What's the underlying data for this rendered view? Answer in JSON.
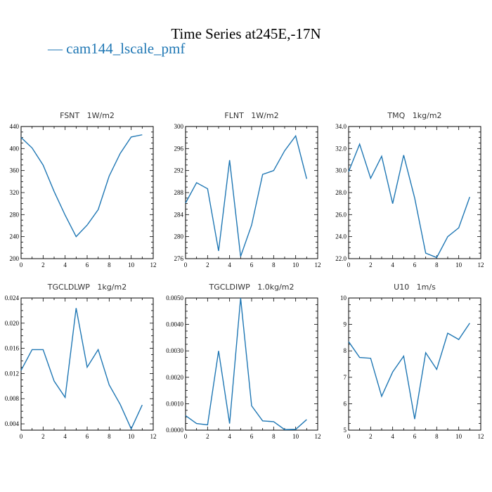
{
  "figure": {
    "title": "Time Series at245E,-17N",
    "legend_label": "cam144_lscale_pmf",
    "line_color": "#1f77b4"
  },
  "chart_data": [
    {
      "type": "line",
      "title": "FSNT   1W/m2",
      "x": [
        0,
        1,
        2,
        3,
        4,
        5,
        6,
        7,
        8,
        9,
        10,
        11
      ],
      "xlim": [
        0,
        12
      ],
      "xticks": [
        "0",
        "2",
        "4",
        "6",
        "8",
        "10",
        "12"
      ],
      "ylim": [
        200,
        440
      ],
      "yticks": [
        "200",
        "240",
        "280",
        "320",
        "360",
        "400",
        "440"
      ],
      "series": [
        {
          "values": [
            420,
            401,
            370,
            322,
            279,
            240,
            261,
            289,
            350,
            391,
            421,
            425
          ]
        }
      ]
    },
    {
      "type": "line",
      "title": "FLNT   1W/m2",
      "x": [
        0,
        1,
        2,
        3,
        4,
        5,
        6,
        7,
        8,
        9,
        10,
        11
      ],
      "xlim": [
        0,
        12
      ],
      "xticks": [
        "0",
        "2",
        "4",
        "6",
        "8",
        "10",
        "12"
      ],
      "ylim": [
        276,
        300
      ],
      "yticks": [
        "276",
        "280",
        "284",
        "288",
        "292",
        "296",
        "300"
      ],
      "series": [
        {
          "values": [
            286.1,
            289.8,
            288.7,
            277.4,
            293.9,
            276.4,
            282.1,
            291.3,
            292.0,
            295.6,
            298.3,
            290.5
          ]
        }
      ]
    },
    {
      "type": "line",
      "title": "TMQ   1kg/m2",
      "x": [
        0,
        1,
        2,
        3,
        4,
        5,
        6,
        7,
        8,
        9,
        10,
        11
      ],
      "xlim": [
        0,
        12
      ],
      "xticks": [
        "0",
        "2",
        "4",
        "6",
        "8",
        "10",
        "12"
      ],
      "ylim": [
        22,
        34
      ],
      "yticks": [
        "22.0",
        "24.0",
        "26.0",
        "28.0",
        "30.0",
        "32.0",
        "34.0"
      ],
      "series": [
        {
          "values": [
            29.9,
            32.4,
            29.3,
            31.3,
            27.0,
            31.4,
            27.5,
            22.5,
            22.1,
            24.0,
            24.8,
            27.6
          ]
        }
      ]
    },
    {
      "type": "line",
      "title": "TGCLDLWP   1kg/m2",
      "x": [
        0,
        1,
        2,
        3,
        4,
        5,
        6,
        7,
        8,
        9,
        10,
        11
      ],
      "xlim": [
        0,
        12
      ],
      "xticks": [
        "0",
        "2",
        "4",
        "6",
        "8",
        "10",
        "12"
      ],
      "ylim": [
        0.003,
        0.024
      ],
      "yticks": [
        "0.004",
        "0.008",
        "0.012",
        "0.016",
        "0.020",
        "0.024"
      ],
      "series": [
        {
          "values": [
            0.0125,
            0.0158,
            0.0158,
            0.0108,
            0.0082,
            0.0224,
            0.013,
            0.0158,
            0.0102,
            0.0071,
            0.0032,
            0.007
          ]
        }
      ]
    },
    {
      "type": "line",
      "title": "TGCLDIWP   1.0kg/m2",
      "x": [
        0,
        1,
        2,
        3,
        4,
        5,
        6,
        7,
        8,
        9,
        10,
        11
      ],
      "xlim": [
        0,
        12
      ],
      "xticks": [
        "0",
        "2",
        "4",
        "6",
        "8",
        "10",
        "12"
      ],
      "ylim": [
        0,
        0.005
      ],
      "yticks": [
        "0.0000",
        "0.0010",
        "0.0020",
        "0.0030",
        "0.0040",
        "0.0050"
      ],
      "series": [
        {
          "values": [
            0.00055,
            0.00025,
            0.0002,
            0.003,
            0.00025,
            0.005,
            0.00092,
            0.00035,
            0.00032,
            2e-05,
            3e-05,
            0.0004
          ]
        }
      ]
    },
    {
      "type": "line",
      "title": "U10   1m/s",
      "x": [
        0,
        1,
        2,
        3,
        4,
        5,
        6,
        7,
        8,
        9,
        10,
        11
      ],
      "xlim": [
        0,
        12
      ],
      "xticks": [
        "0",
        "2",
        "4",
        "6",
        "8",
        "10",
        "12"
      ],
      "ylim": [
        5,
        10
      ],
      "yticks": [
        "5",
        "6",
        "7",
        "8",
        "9",
        "10"
      ],
      "series": [
        {
          "values": [
            8.35,
            7.75,
            7.72,
            6.28,
            7.2,
            7.8,
            5.42,
            7.93,
            7.3,
            8.67,
            8.43,
            9.05
          ]
        }
      ]
    }
  ]
}
